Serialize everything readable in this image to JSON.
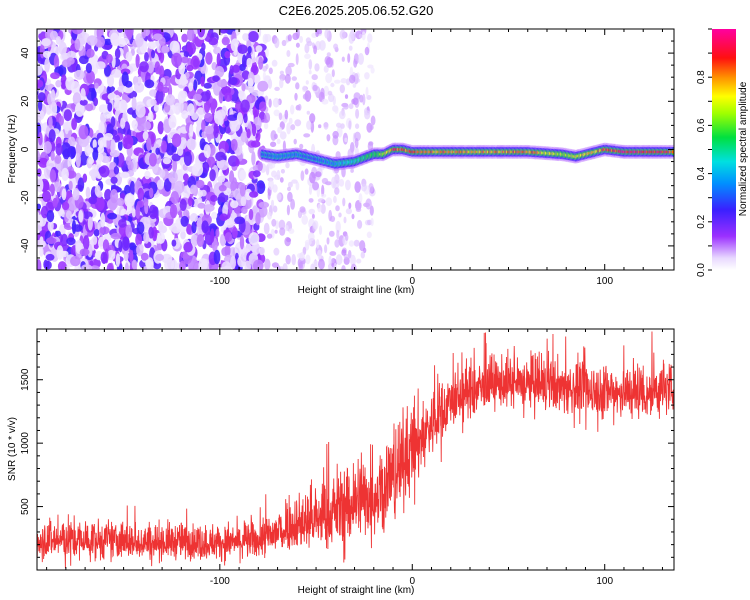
{
  "title": "C2E6.2025.205.06.52.G20",
  "chart_data": [
    {
      "type": "heatmap",
      "xlabel": "Height of straight line (km)",
      "ylabel": "Frequency (Hz)",
      "xlim": [
        -195,
        136
      ],
      "ylim": [
        -50,
        50
      ],
      "xticks": [
        -100,
        0,
        100
      ],
      "yticks": [
        -40,
        -20,
        0,
        20,
        40
      ],
      "colorbar": {
        "label": "Normalized spectral amplitude",
        "range": [
          0,
          1
        ],
        "ticks": [
          0.0,
          0.2,
          0.4,
          0.6,
          0.8
        ],
        "colormap": "rainbow (white-purple-blue-cyan-green-yellow-red-magenta)"
      },
      "noise_region_x": [
        -195,
        -20
      ],
      "dense_noise_end_x": -77,
      "signal_ridge": {
        "x": [
          -78,
          -70,
          -60,
          -50,
          -40,
          -30,
          -20,
          -15,
          -10,
          -5,
          0,
          20,
          40,
          60,
          78,
          85,
          90,
          95,
          100,
          110,
          136
        ],
        "frequency": [
          -2,
          -3,
          -2,
          -4,
          -6,
          -5,
          -2,
          -2,
          0,
          0,
          -1,
          -1,
          -1,
          -1,
          -2,
          -3,
          -2,
          -1,
          0,
          -1,
          -1
        ],
        "peak_amplitude": [
          0.3,
          0.35,
          0.35,
          0.3,
          0.4,
          0.5,
          0.6,
          0.7,
          0.95,
          0.9,
          0.9,
          0.85,
          0.85,
          0.9,
          0.7,
          0.75,
          0.8,
          0.8,
          0.9,
          1.0,
          0.95
        ]
      }
    },
    {
      "type": "line",
      "xlabel": "Height of straight line (km)",
      "ylabel": "SNR (10 * v/v)",
      "xlim": [
        -195,
        136
      ],
      "ylim": [
        0,
        1900
      ],
      "xticks": [
        -100,
        0,
        100
      ],
      "yticks": [
        500,
        1000,
        1500
      ],
      "color": "#ee3333",
      "envelope": {
        "x": [
          -195,
          -150,
          -100,
          -80,
          -72,
          -65,
          -50,
          -35,
          -20,
          -10,
          0,
          10,
          20,
          40,
          60,
          80,
          100,
          120,
          136
        ],
        "mean": [
          230,
          220,
          210,
          230,
          260,
          330,
          380,
          480,
          580,
          700,
          920,
          1150,
          1320,
          1450,
          1450,
          1420,
          1380,
          1390,
          1420
        ],
        "max": [
          560,
          510,
          470,
          500,
          700,
          830,
          900,
          1150,
          1300,
          1500,
          1650,
          1620,
          1800,
          1880,
          1900,
          1840,
          1880,
          1880,
          1880
        ],
        "min": [
          0,
          0,
          0,
          0,
          20,
          60,
          30,
          60,
          100,
          200,
          450,
          700,
          1000,
          1180,
          1200,
          1130,
          1080,
          1070,
          1100
        ]
      }
    }
  ]
}
